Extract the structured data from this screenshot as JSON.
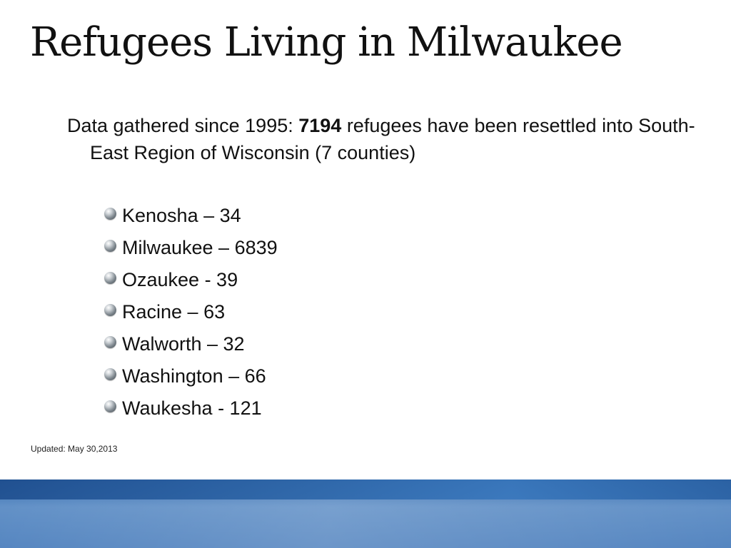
{
  "slide": {
    "title": "Refugees Living in Milwaukee",
    "intro": {
      "prefix": "Data gathered since 1995:  ",
      "number": "7194",
      "suffix": " refugees have been resettled into South-East Region of Wisconsin (7 counties)"
    },
    "counties": [
      {
        "text": "Kenosha – 34"
      },
      {
        "text": "Milwaukee – 6839"
      },
      {
        "text": "Ozaukee - 39"
      },
      {
        "text": "Racine – 63"
      },
      {
        "text": "Walworth – 32"
      },
      {
        "text": "Washington – 66"
      },
      {
        "text": "Waukesha - 121"
      }
    ],
    "updated": "Updated: May 30,2013"
  },
  "colors": {
    "text": "#111111",
    "footer_band": "#3e74b5"
  },
  "icons": {
    "bullet": "sphere-bullet-icon"
  }
}
